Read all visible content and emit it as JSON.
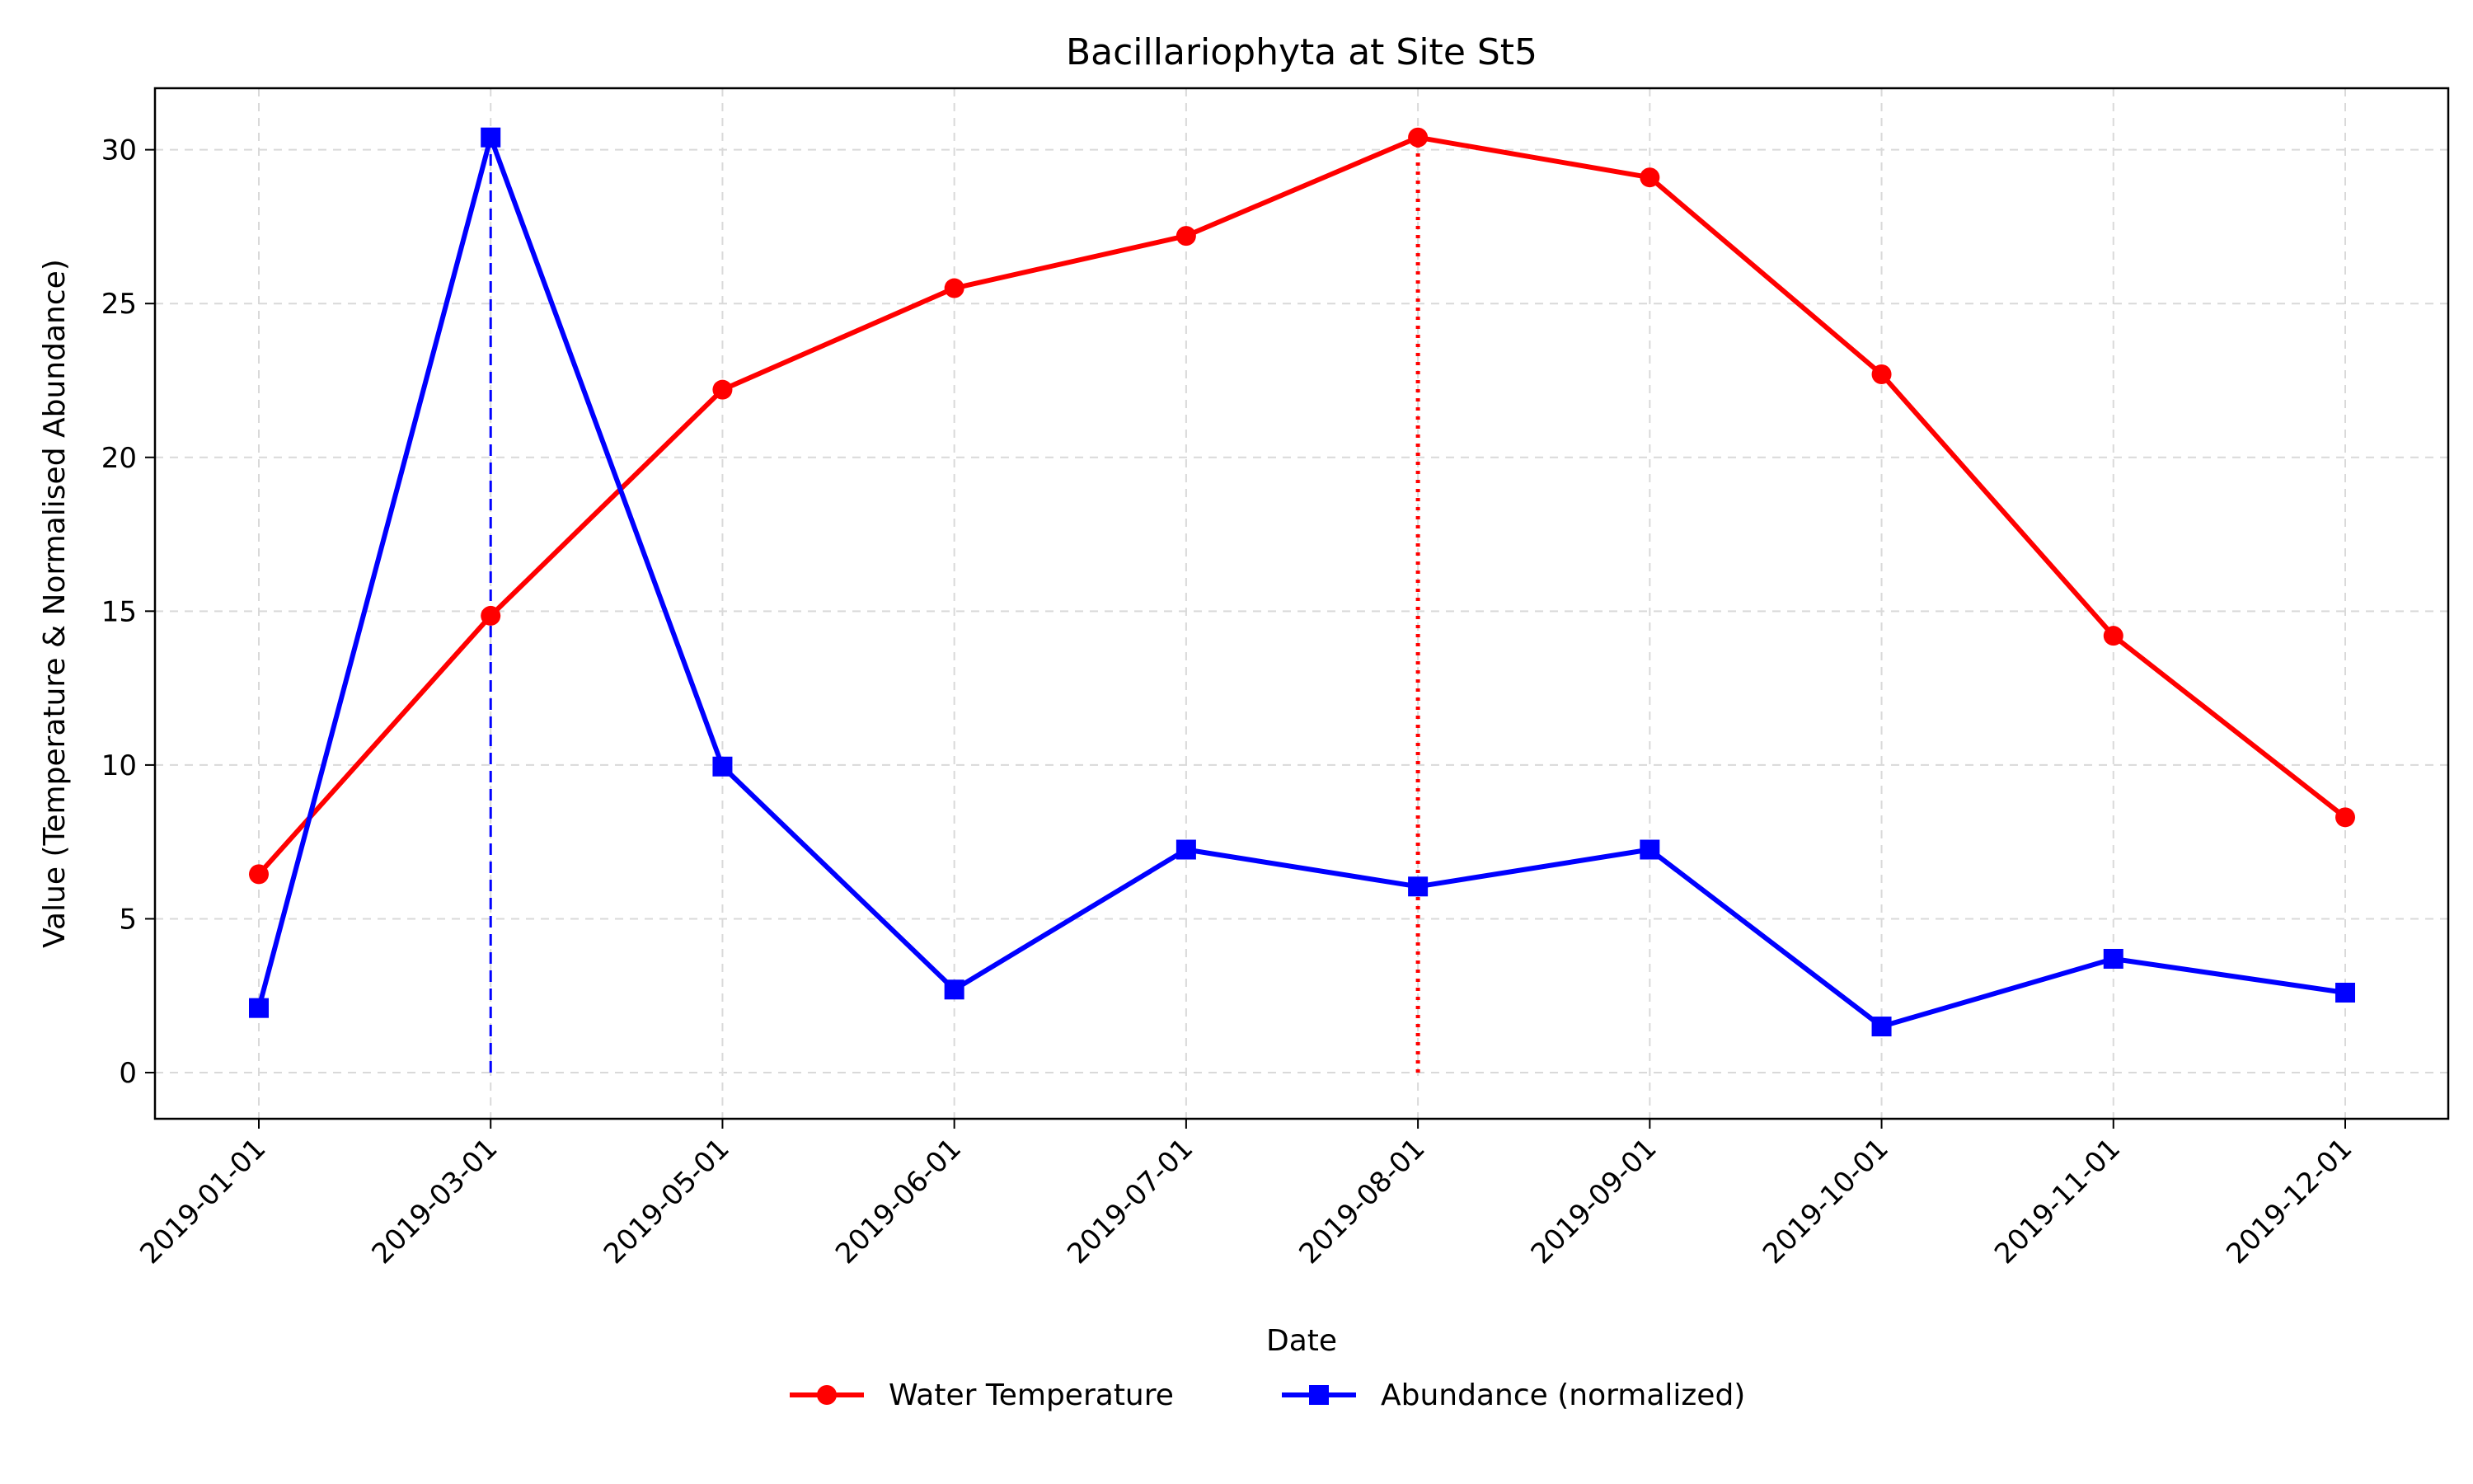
{
  "chart_data": {
    "type": "line",
    "title": "Bacillariophyta at Site St5",
    "xlabel": "Date",
    "ylabel": "Value (Temperature & Normalised Abundance)",
    "categories": [
      "2019-01-01",
      "2019-03-01",
      "2019-05-01",
      "2019-06-01",
      "2019-07-01",
      "2019-08-01",
      "2019-09-01",
      "2019-10-01",
      "2019-11-01",
      "2019-12-01"
    ],
    "ylim": [
      -1.5,
      32
    ],
    "yticks": [
      0,
      5,
      10,
      15,
      20,
      25,
      30
    ],
    "grid": true,
    "legend_position": "bottom-center",
    "series": [
      {
        "name": "Water Temperature",
        "color": "#ff0000",
        "marker": "circle",
        "values": [
          6.45,
          14.85,
          22.2,
          25.5,
          27.2,
          30.4,
          29.1,
          22.7,
          14.2,
          8.3
        ]
      },
      {
        "name": "Abundance (normalized)",
        "color": "#0000ff",
        "marker": "square",
        "values": [
          2.1,
          30.4,
          9.95,
          2.7,
          7.25,
          6.05,
          7.25,
          1.5,
          3.7,
          2.6
        ]
      }
    ],
    "annotations": [
      {
        "category": "2019-03-01",
        "from": 0,
        "to": 30.4,
        "style": "dashed",
        "color": "#0000ff"
      },
      {
        "category": "2019-08-01",
        "from": 0,
        "to": 30.4,
        "style": "dotted",
        "color": "#ff0000"
      }
    ]
  }
}
